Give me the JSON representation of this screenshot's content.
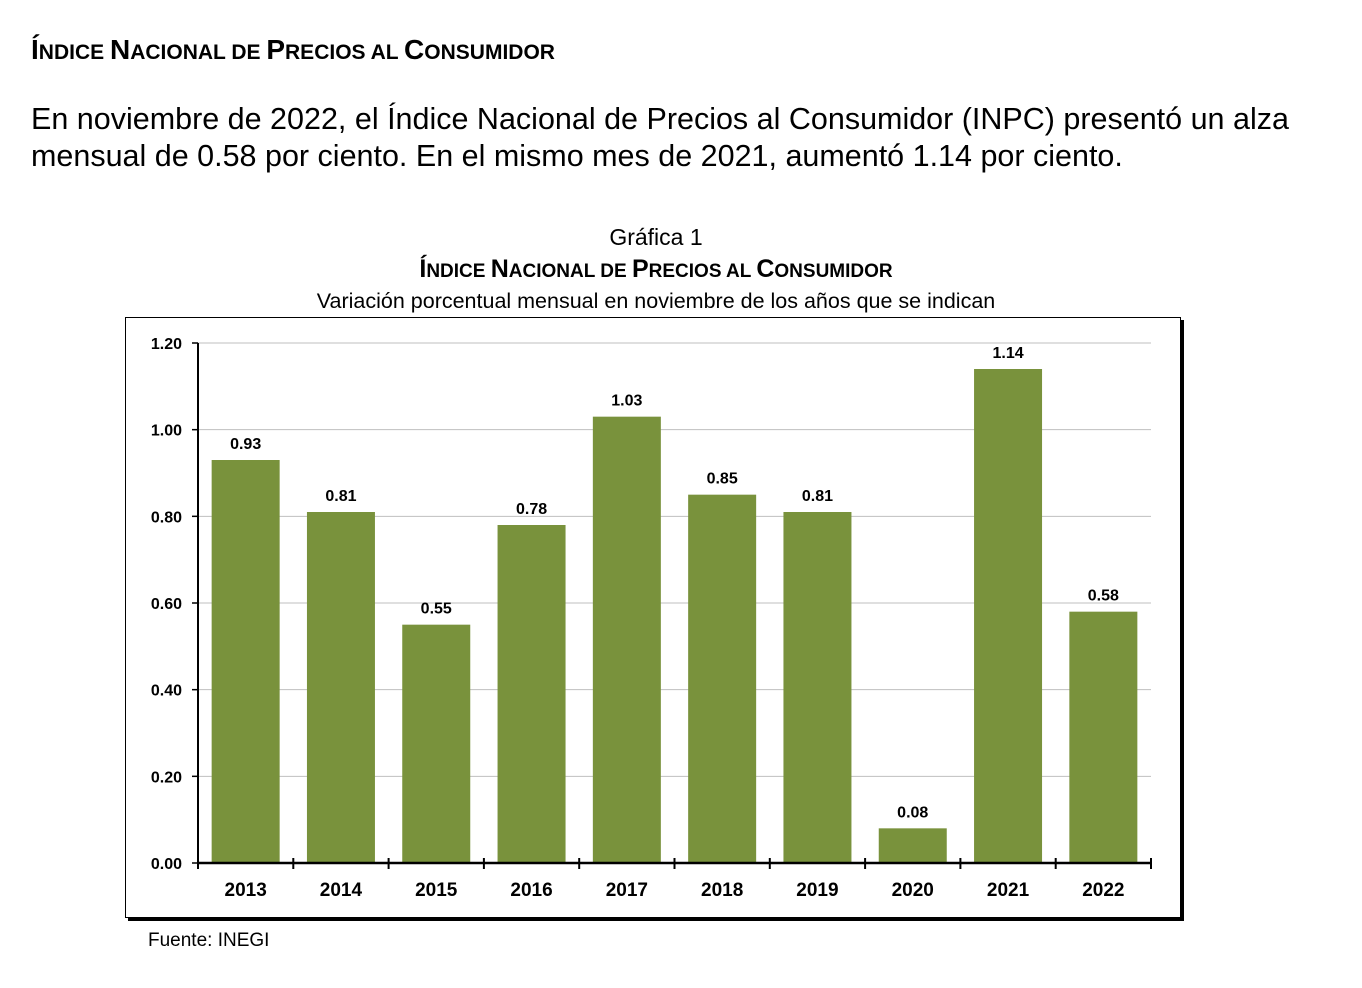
{
  "section_title": {
    "parts": [
      {
        "cap": "Í",
        "rest": "NDICE "
      },
      {
        "cap": "N",
        "rest": "ACIONAL DE "
      },
      {
        "cap": "P",
        "rest": "RECIOS AL "
      },
      {
        "cap": "C",
        "rest": "ONSUMIDOR"
      }
    ]
  },
  "paragraph": "En noviembre de 2022, el Índice Nacional de Precios al Consumidor (INPC) presentó un alza mensual de 0.58 por ciento. En el mismo mes de 2021, aumentó 1.14 por ciento.",
  "source": "Fuente: INEGI",
  "chart_data": {
    "type": "bar",
    "label": "Gráfica 1",
    "title": "ÍNDICE NACIONAL DE PRECIOS AL CONSUMIDOR",
    "title_parts": [
      {
        "cap": "Í",
        "rest": "NDICE "
      },
      {
        "cap": "N",
        "rest": "ACIONAL DE "
      },
      {
        "cap": "P",
        "rest": "RECIOS AL "
      },
      {
        "cap": "C",
        "rest": "ONSUMIDOR"
      }
    ],
    "subtitle": "Variación porcentual mensual en noviembre de los años que se indican",
    "xlabel": "",
    "ylabel": "",
    "categories": [
      "2013",
      "2014",
      "2015",
      "2016",
      "2017",
      "2018",
      "2019",
      "2020",
      "2021",
      "2022"
    ],
    "values": [
      0.93,
      0.81,
      0.55,
      0.78,
      1.03,
      0.85,
      0.81,
      0.08,
      1.14,
      0.58
    ],
    "data_labels": [
      "0.93",
      "0.81",
      "0.55",
      "0.78",
      "1.03",
      "0.85",
      "0.81",
      "0.08",
      "1.14",
      "0.58"
    ],
    "ylim": [
      0,
      1.2
    ],
    "yticks": [
      0,
      0.2,
      0.4,
      0.6,
      0.8,
      1.0,
      1.2
    ],
    "ytick_labels": [
      "0.00",
      "0.20",
      "0.40",
      "0.60",
      "0.80",
      "1.00",
      "1.20"
    ],
    "grid": true,
    "legend": "none",
    "bar_color": "#79923C",
    "grid_color": "#BFBFBF"
  }
}
